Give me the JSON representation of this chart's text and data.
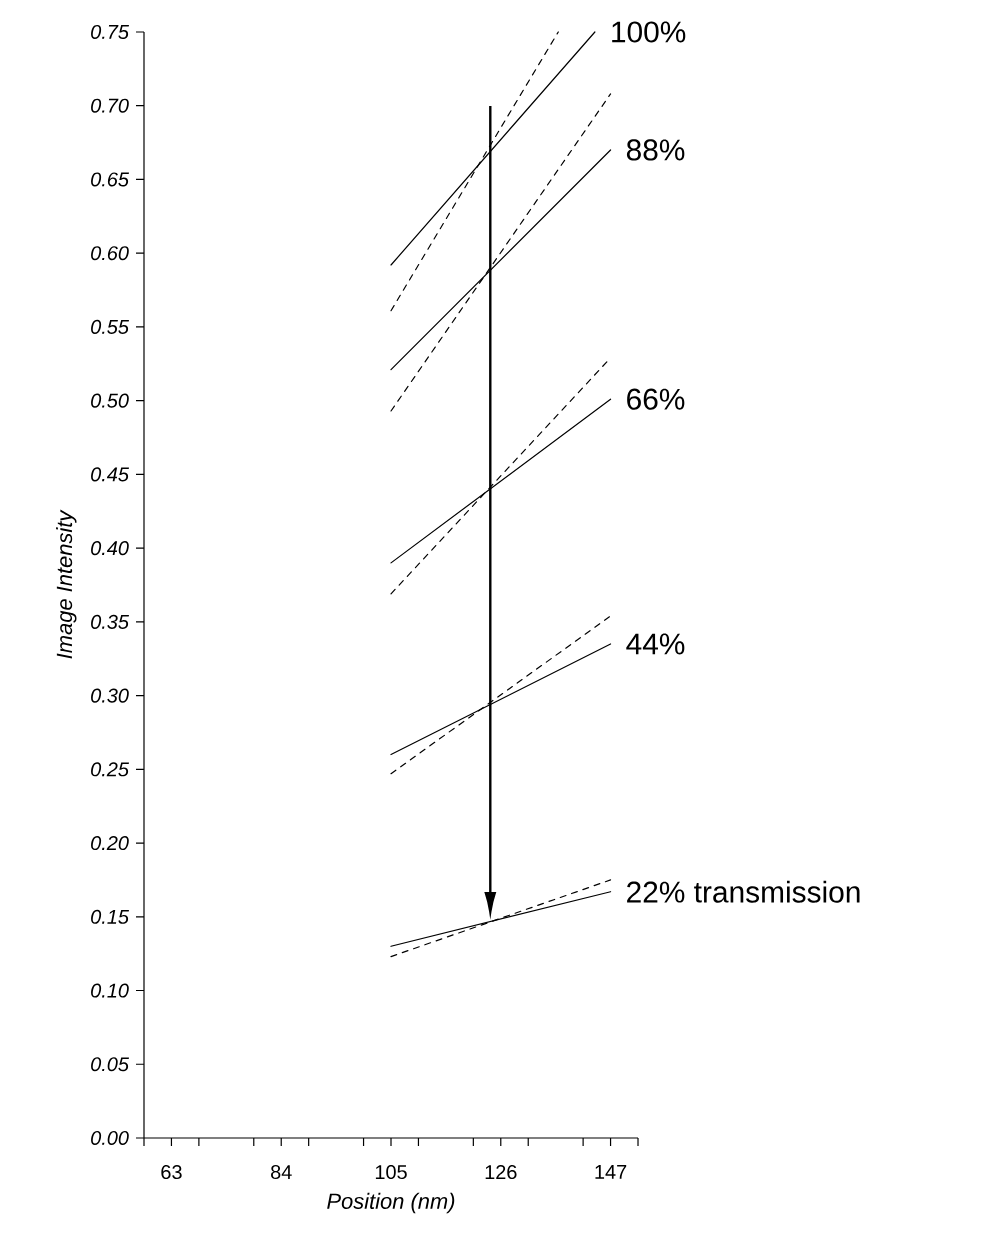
{
  "chart_data": {
    "type": "line",
    "xlabel": "Position (nm)",
    "ylabel": "Image Intensity",
    "xlim": [
      57.75,
      152.25
    ],
    "ylim": [
      0,
      0.75
    ],
    "xticks": [
      {
        "value": 57.75,
        "label": null
      },
      63,
      {
        "value": 68.25,
        "label": null
      },
      {
        "value": 78.75,
        "label": null
      },
      84,
      {
        "value": 89.25,
        "label": null
      },
      {
        "value": 99.75,
        "label": null
      },
      105,
      {
        "value": 110.25,
        "label": null
      },
      {
        "value": 120.75,
        "label": null
      },
      126,
      {
        "value": 131.25,
        "label": null
      },
      {
        "value": 141.75,
        "label": null
      },
      147,
      {
        "value": 152.25,
        "label": null
      }
    ],
    "yticks": [
      {
        "value": 0,
        "label": "0.00"
      },
      {
        "value": 0.05,
        "label": "0.05"
      },
      {
        "value": 0.1,
        "label": "0.10"
      },
      {
        "value": 0.15,
        "label": "0.15"
      },
      {
        "value": 0.2,
        "label": "0.20"
      },
      {
        "value": 0.25,
        "label": "0.25"
      },
      {
        "value": 0.3,
        "label": "0.30"
      },
      {
        "value": 0.35,
        "label": "0.35"
      },
      {
        "value": 0.4,
        "label": "0.40"
      },
      {
        "value": 0.45,
        "label": "0.45"
      },
      {
        "value": 0.5,
        "label": "0.50"
      },
      {
        "value": 0.55,
        "label": "0.55"
      },
      {
        "value": 0.6,
        "label": "0.60"
      },
      {
        "value": 0.65,
        "label": "0.65"
      },
      {
        "value": 0.7,
        "label": "0.70"
      },
      {
        "value": 0.75,
        "label": "0.75"
      }
    ],
    "grid": false,
    "legend": false,
    "series": [
      {
        "name": "100%",
        "color": "#000000",
        "line_style": "solid",
        "x": [
          105,
          144
        ],
        "values": [
          0.592,
          0.75
        ]
      },
      {
        "color": "#000000",
        "line_style": "dashed",
        "x": [
          105,
          137
        ],
        "values": [
          0.561,
          0.75
        ]
      },
      {
        "name": "88%",
        "color": "#000000",
        "line_style": "solid",
        "x": [
          105,
          147
        ],
        "values": [
          0.521,
          0.67
        ]
      },
      {
        "color": "#000000",
        "line_style": "dashed",
        "x": [
          105,
          147
        ],
        "values": [
          0.493,
          0.708
        ]
      },
      {
        "name": "66%",
        "color": "#000000",
        "line_style": "solid",
        "x": [
          105,
          147
        ],
        "values": [
          0.39,
          0.501
        ]
      },
      {
        "color": "#000000",
        "line_style": "dashed",
        "x": [
          105,
          147
        ],
        "values": [
          0.369,
          0.529
        ]
      },
      {
        "name": "44%",
        "color": "#000000",
        "line_style": "solid",
        "x": [
          105,
          147
        ],
        "values": [
          0.26,
          0.335
        ]
      },
      {
        "color": "#000000",
        "line_style": "dashed",
        "x": [
          105,
          147
        ],
        "values": [
          0.247,
          0.354
        ]
      },
      {
        "name": "22% transmission",
        "color": "#000000",
        "line_style": "solid",
        "x": [
          105,
          147
        ],
        "values": [
          0.13,
          0.167
        ]
      },
      {
        "color": "#000000",
        "line_style": "dashed",
        "x": [
          105,
          147
        ],
        "values": [
          0.123,
          0.175
        ]
      }
    ]
  }
}
